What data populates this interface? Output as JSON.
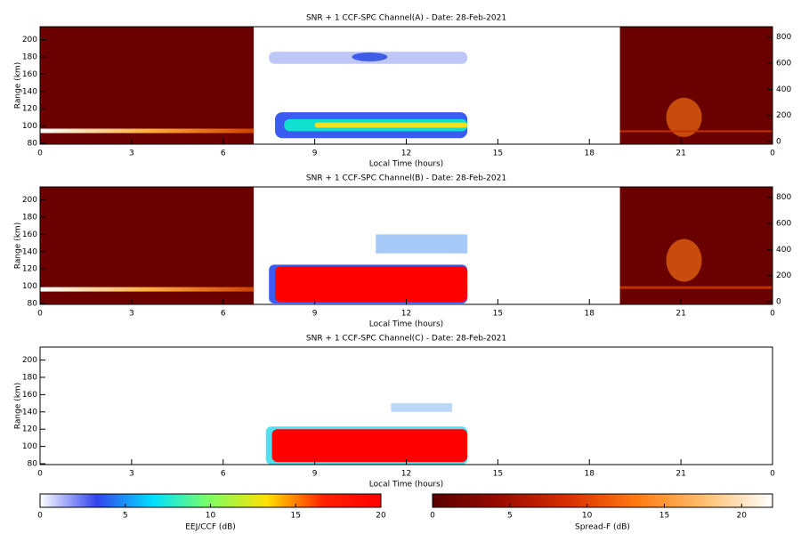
{
  "chart_data": [
    {
      "type": "heatmap",
      "title": "SNR + 1 CCF-SPC Channel(A) - Date: 28-Feb-2021",
      "x_label": "Local Time (hours)",
      "y_label": "Range (km)",
      "xlim": [
        0,
        24
      ],
      "xticks": [
        0,
        3,
        6,
        9,
        12,
        15,
        18,
        21,
        {
          "value": 24,
          "label": "0"
        }
      ],
      "ylim": [
        79,
        215
      ],
      "yticks": [
        80,
        100,
        120,
        140,
        160,
        180,
        200
      ],
      "y2lim": [
        -20,
        880
      ],
      "y2ticks": [
        0,
        200,
        400,
        600,
        800
      ]
    },
    {
      "type": "heatmap",
      "title": "SNR + 1 CCF-SPC Channel(B) - Date: 28-Feb-2021",
      "x_label": "Local Time (hours)",
      "y_label": "Range (km)",
      "xlim": [
        0,
        24
      ],
      "xticks": [
        0,
        3,
        6,
        9,
        12,
        15,
        18,
        21,
        {
          "value": 24,
          "label": "0"
        }
      ],
      "ylim": [
        79,
        215
      ],
      "yticks": [
        80,
        100,
        120,
        140,
        160,
        180,
        200
      ],
      "y2lim": [
        -20,
        880
      ],
      "y2ticks": [
        0,
        200,
        400,
        600,
        800
      ]
    },
    {
      "type": "heatmap",
      "title": "SNR + 1 CCF-SPC Channel(C) - Date: 28-Feb-2021",
      "x_label": "Local Time (hours)",
      "y_label": "Range (km)",
      "xlim": [
        0,
        24
      ],
      "xticks": [
        0,
        3,
        6,
        9,
        12,
        15,
        18,
        21,
        {
          "value": 24,
          "label": "0"
        }
      ],
      "ylim": [
        79,
        215
      ],
      "yticks": [
        80,
        100,
        120,
        140,
        160,
        180,
        200
      ]
    },
    {
      "type": "colorbar",
      "x_label": "EEJ/CCF (dB)",
      "xlim": [
        0,
        20
      ],
      "xticks": [
        0,
        5,
        10,
        15,
        20
      ],
      "colormap": [
        "#ffffff",
        "#3344ee",
        "#00e0ff",
        "#80ff60",
        "#ffe000",
        "#ff2000",
        "#ff0000"
      ]
    },
    {
      "type": "colorbar",
      "x_label": "Spread-F (dB)",
      "xlim": [
        0,
        22
      ],
      "xticks": [
        0,
        5,
        10,
        15,
        20
      ],
      "colormap": [
        "#5a0000",
        "#9a0a00",
        "#d83000",
        "#ff7a10",
        "#ffc070",
        "#ffffff"
      ]
    }
  ]
}
